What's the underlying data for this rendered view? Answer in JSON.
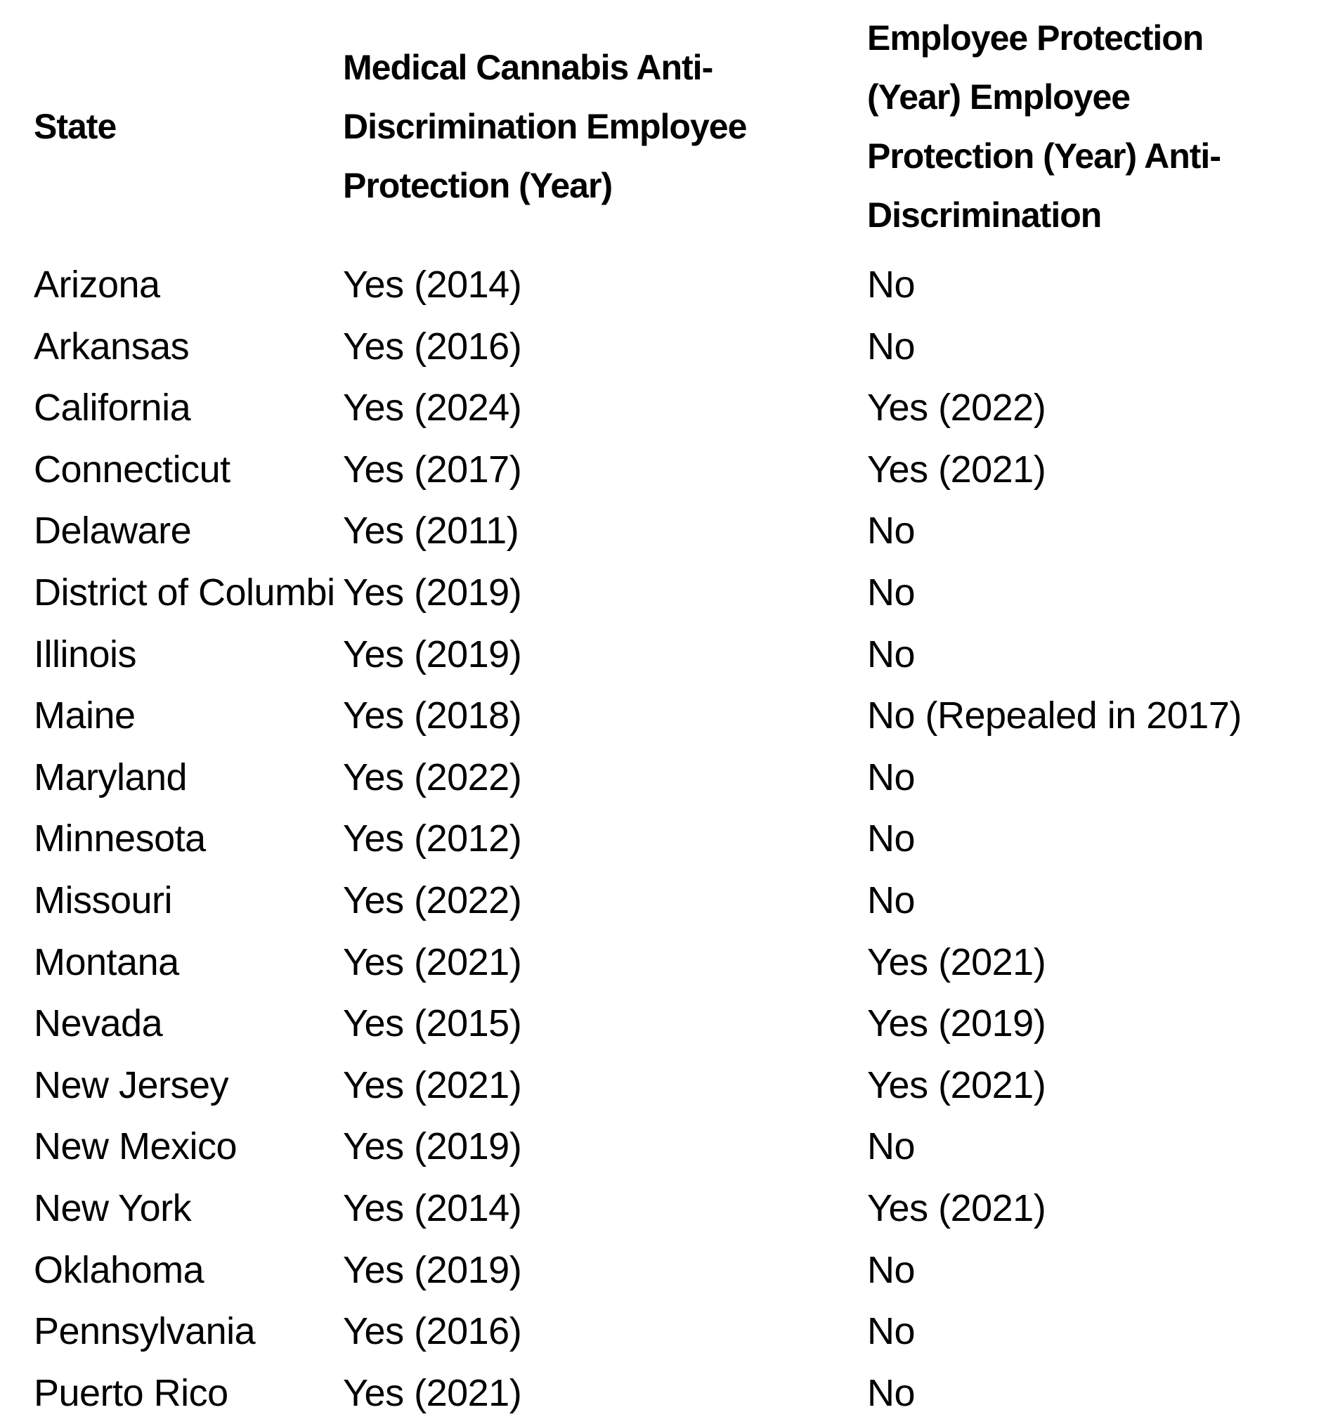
{
  "table": {
    "headers": [
      "State",
      "Medical Cannabis Anti-\nDiscrimination Employee\nProtection (Year)",
      "Employee Protection\n(Year) Employee\nProtection (Year) Anti-\nDiscrimination"
    ],
    "rows": [
      [
        "Arizona",
        "Yes (2014)",
        "No"
      ],
      [
        "Arkansas",
        "Yes (2016)",
        "No"
      ],
      [
        "California",
        "Yes (2024)",
        "Yes (2022)"
      ],
      [
        "Connecticut",
        "Yes (2017)",
        "Yes (2021)"
      ],
      [
        "Delaware",
        "Yes (2011)",
        "No"
      ],
      [
        "District of Columbia",
        "Yes (2019)",
        "No"
      ],
      [
        "Illinois",
        "Yes (2019)",
        "No"
      ],
      [
        "Maine",
        "Yes (2018)",
        "No (Repealed in 2017)"
      ],
      [
        "Maryland",
        "Yes (2022)",
        "No"
      ],
      [
        "Minnesota",
        "Yes (2012)",
        "No"
      ],
      [
        "Missouri",
        "Yes (2022)",
        "No"
      ],
      [
        "Montana",
        "Yes (2021)",
        "Yes (2021)"
      ],
      [
        "Nevada",
        "Yes (2015)",
        "Yes (2019)"
      ],
      [
        "New Jersey",
        "Yes (2021)",
        "Yes (2021)"
      ],
      [
        "New Mexico",
        "Yes (2019)",
        "No"
      ],
      [
        "New York",
        "Yes (2014)",
        "Yes (2021)"
      ],
      [
        "Oklahoma",
        "Yes (2019)",
        "No"
      ],
      [
        "Pennsylvania",
        "Yes (2016)",
        "No"
      ],
      [
        "Puerto Rico",
        "Yes (2021)",
        "No"
      ]
    ]
  }
}
